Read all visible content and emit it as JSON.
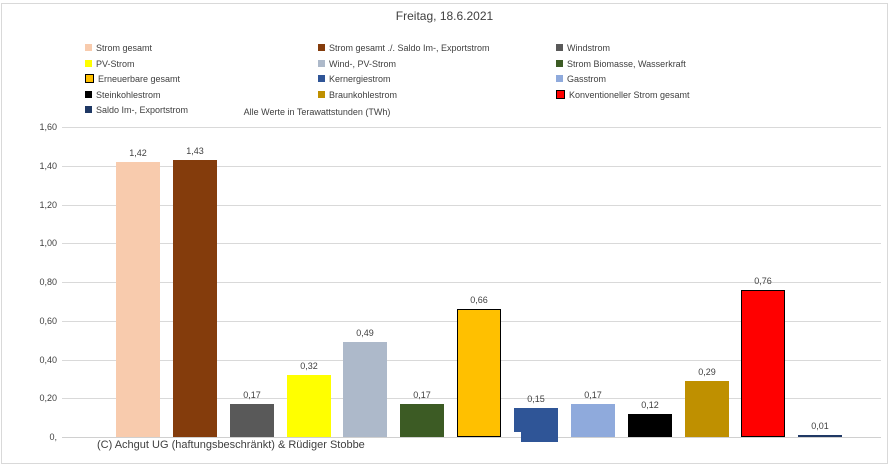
{
  "chart_data": {
    "type": "bar",
    "title": "Freitag, 18.6.2021",
    "note": "Alle Werte in Terawattstunden (TWh)",
    "xlabel": "(C) Achgut UG (haftungsbeschränkt) & Rüdiger Stobbe",
    "ylabel": "",
    "ylim": [
      0,
      1.6
    ],
    "ytick_labels_top_down": [
      "1,60",
      "1,40",
      "1,20",
      "1,00",
      "0,80",
      "0,60",
      "0,40",
      "0,20",
      "0,"
    ],
    "grid": true,
    "legend_position": "top",
    "series": [
      {
        "name": "Strom gesamt",
        "value": 1.42,
        "label": "1,42",
        "color": "#F8CBAD"
      },
      {
        "name": "Strom gesamt ./. Saldo Im-, Exportstrom",
        "value": 1.43,
        "label": "1,43",
        "color": "#843C0C"
      },
      {
        "name": "Windstrom",
        "value": 0.17,
        "label": "0,17",
        "color": "#595959"
      },
      {
        "name": "PV-Strom",
        "value": 0.32,
        "label": "0,32",
        "color": "#FFFF00"
      },
      {
        "name": "Wind-, PV-Strom",
        "value": 0.49,
        "label": "0,49",
        "color": "#ADB9CA"
      },
      {
        "name": "Strom Biomasse, Wasserkraft",
        "value": 0.17,
        "label": "0,17",
        "color": "#3C5B24"
      },
      {
        "name": "Erneuerbare gesamt",
        "value": 0.66,
        "label": "0,66",
        "color": "#FFC000",
        "border": "#000000"
      },
      {
        "name": "Kernergiestrom",
        "value": 0.15,
        "label": "0,15",
        "color": "#2F5597",
        "glitch": true
      },
      {
        "name": "Gasstrom",
        "value": 0.17,
        "label": "0,17",
        "color": "#8FAADC"
      },
      {
        "name": "Steinkohlestrom",
        "value": 0.12,
        "label": "0,12",
        "color": "#000000"
      },
      {
        "name": "Braunkohlestrom",
        "value": 0.29,
        "label": "0,29",
        "color": "#BF9000"
      },
      {
        "name": "Konventioneller Strom gesamt",
        "value": 0.76,
        "label": "0,76",
        "color": "#FF0000",
        "border": "#000000"
      },
      {
        "name": "Saldo Im-, Exportstrom",
        "value": 0.01,
        "label": "0,01",
        "color": "#1F3864"
      }
    ],
    "legend_columns": [
      [
        0,
        3,
        6,
        9,
        12
      ],
      [
        1,
        4,
        7,
        10
      ],
      [
        2,
        5,
        8,
        11
      ]
    ]
  }
}
